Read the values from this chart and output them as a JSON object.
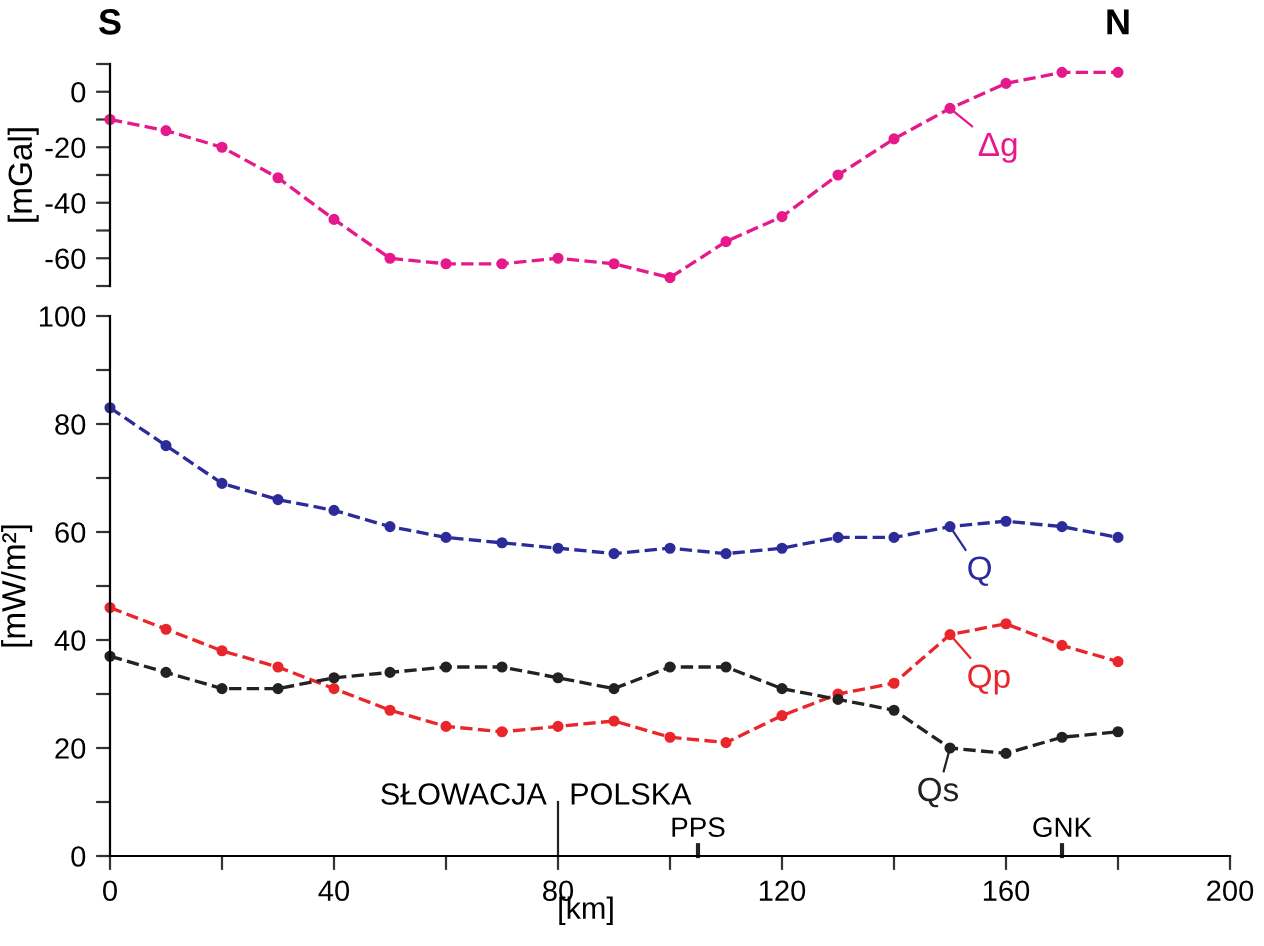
{
  "chart_data": [
    {
      "type": "line",
      "ylabel": "[mGal]",
      "annotations": [
        "S",
        "N"
      ],
      "x": [
        0,
        10,
        20,
        30,
        40,
        50,
        60,
        70,
        80,
        90,
        100,
        110,
        120,
        130,
        140,
        150,
        160,
        170,
        180
      ],
      "series": [
        {
          "name": "Δg",
          "color": "#e6198c",
          "values": [
            -10,
            -14,
            -20,
            -31,
            -46,
            -60,
            -62,
            -62,
            -60,
            -62,
            -67,
            -54,
            -45,
            -30,
            -17,
            -6,
            3,
            7,
            7
          ]
        }
      ],
      "xlim": [
        0,
        200
      ],
      "ylim": [
        -70,
        10
      ],
      "yticks": [
        {
          "value": 10,
          "label": null
        },
        0,
        {
          "value": -10,
          "label": null
        },
        -20,
        {
          "value": -30,
          "label": null
        },
        -40,
        {
          "value": -50,
          "label": null
        },
        -60,
        {
          "value": -70,
          "label": null
        }
      ],
      "tick_labels": "y",
      "grid": false,
      "legend": "right",
      "marker": "circle",
      "line_style": "dashed"
    },
    {
      "type": "line",
      "xlabel": "[km]",
      "ylabel": "[mW/m²]",
      "annotations": [
        "SŁOWACJA",
        "POLSKA",
        "PPS",
        "GNK"
      ],
      "x": [
        0,
        10,
        20,
        30,
        40,
        50,
        60,
        70,
        80,
        90,
        100,
        110,
        120,
        130,
        140,
        150,
        160,
        170,
        180
      ],
      "series": [
        {
          "name": "Q",
          "color": "#2b2b99",
          "values": [
            83,
            76,
            69,
            66,
            64,
            61,
            59,
            58,
            57,
            56,
            57,
            56,
            57,
            59,
            59,
            61,
            62,
            61,
            59
          ]
        },
        {
          "name": "Qp",
          "color": "#e8262b",
          "values": [
            46,
            42,
            38,
            35,
            31,
            27,
            24,
            23,
            24,
            25,
            22,
            21,
            26,
            30,
            32,
            41,
            43,
            39,
            36
          ]
        },
        {
          "name": "Qs",
          "color": "#222222",
          "values": [
            37,
            34,
            31,
            31,
            33,
            34,
            35,
            35,
            33,
            31,
            35,
            35,
            31,
            29,
            27,
            20,
            19,
            22,
            23
          ]
        }
      ],
      "xlim": [
        0,
        200
      ],
      "ylim": [
        0,
        100
      ],
      "xticks": [
        0,
        {
          "value": 20,
          "label": null
        },
        40,
        {
          "value": 60,
          "label": null
        },
        80,
        {
          "value": 100,
          "label": null
        },
        120,
        {
          "value": 140,
          "label": null
        },
        160,
        {
          "value": 180,
          "label": null
        },
        200
      ],
      "yticks": [
        0,
        {
          "value": 10,
          "label": null
        },
        20,
        {
          "value": 30,
          "label": null
        },
        40,
        {
          "value": 50,
          "label": null
        },
        60,
        {
          "value": 70,
          "label": null
        },
        80,
        {
          "value": 90,
          "label": null
        },
        100
      ],
      "grid": false,
      "legend": "right",
      "marker": "circle",
      "line_style": "dashed"
    }
  ]
}
